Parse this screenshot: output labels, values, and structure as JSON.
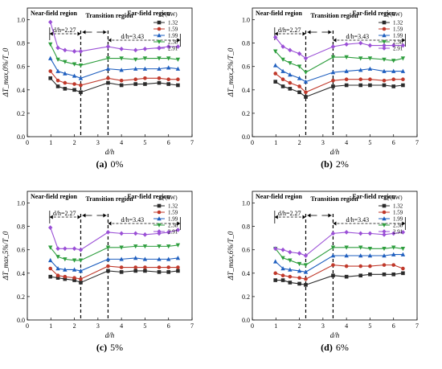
{
  "figure": {
    "series_colors": [
      "#2b2b2b",
      "#c0392b",
      "#1f5fbf",
      "#2e9e3e",
      "#9a4fd6"
    ],
    "series_markers": [
      "square",
      "circle",
      "triangle",
      "inverted-triangle",
      "diamond"
    ]
  },
  "chart_data": [
    {
      "type": "line",
      "caption_letter": "(a)",
      "caption_value": "0%",
      "ylabel": "ΔT_max,0%/T_0",
      "xlabel": "d/h",
      "xlim": [
        0,
        7
      ],
      "ylim": [
        0,
        1.1
      ],
      "xticks": [
        "0",
        "1",
        "2",
        "3",
        "4",
        "5",
        "6",
        "7"
      ],
      "yticks": [
        "0.0",
        "0.2",
        "0.4",
        "0.6",
        "0.8",
        "1.0"
      ],
      "grid": false,
      "legend": {
        "title": "Q (kW)",
        "placement": "top-right",
        "entries": [
          "1.32",
          "1.59",
          "1.99",
          "2.38",
          "2.91"
        ]
      },
      "dashed_lines_x": [
        2.27,
        3.43
      ],
      "annotations": {
        "near": "Near-field region",
        "transition": "Transition region",
        "far": "Far-field region",
        "d1": "d/h=2.27",
        "d2": "d/h=3.43"
      },
      "x": [
        0.98,
        1.3,
        1.6,
        2.0,
        2.27,
        3.43,
        4.0,
        4.6,
        5.0,
        5.6,
        6.0,
        6.4
      ],
      "series": [
        {
          "name": "1.32",
          "values": [
            0.5,
            0.43,
            0.41,
            0.4,
            0.38,
            0.46,
            0.44,
            0.45,
            0.45,
            0.46,
            0.45,
            0.44
          ]
        },
        {
          "name": "1.59",
          "values": [
            0.56,
            0.48,
            0.46,
            0.45,
            0.44,
            0.5,
            0.48,
            0.49,
            0.5,
            0.5,
            0.49,
            0.49
          ]
        },
        {
          "name": "1.99",
          "values": [
            0.67,
            0.56,
            0.54,
            0.52,
            0.5,
            0.58,
            0.57,
            0.58,
            0.58,
            0.58,
            0.59,
            0.58
          ]
        },
        {
          "name": "2.38",
          "values": [
            0.79,
            0.66,
            0.64,
            0.62,
            0.61,
            0.67,
            0.67,
            0.66,
            0.67,
            0.67,
            0.67,
            0.66
          ]
        },
        {
          "name": "2.91",
          "values": [
            0.98,
            0.76,
            0.74,
            0.73,
            0.73,
            0.77,
            0.75,
            0.74,
            0.75,
            0.76,
            0.77,
            0.77
          ]
        }
      ]
    },
    {
      "type": "line",
      "caption_letter": "(b)",
      "caption_value": "2%",
      "ylabel": "ΔT_max,2%/T_0",
      "xlabel": "d/h",
      "xlim": [
        0,
        7
      ],
      "ylim": [
        0,
        1.1
      ],
      "xticks": [
        "0",
        "1",
        "2",
        "3",
        "4",
        "5",
        "6",
        "7"
      ],
      "yticks": [
        "0.0",
        "0.2",
        "0.4",
        "0.6",
        "0.8",
        "1.0"
      ],
      "grid": false,
      "legend": {
        "title": "Q (kW)",
        "placement": "top-right",
        "entries": [
          "1.32",
          "1.59",
          "1.99",
          "2.38",
          "2.91"
        ]
      },
      "dashed_lines_x": [
        2.27,
        3.43
      ],
      "annotations": {
        "near": "Near-field region",
        "transition": "Transition region",
        "far": "Far-field region",
        "d1": "d/h=2.27",
        "d2": "d/h=3.43"
      },
      "x": [
        0.98,
        1.3,
        1.6,
        2.0,
        2.27,
        3.43,
        4.0,
        4.6,
        5.0,
        5.6,
        6.0,
        6.4
      ],
      "series": [
        {
          "name": "1.32",
          "values": [
            0.47,
            0.43,
            0.41,
            0.38,
            0.34,
            0.43,
            0.44,
            0.44,
            0.44,
            0.44,
            0.43,
            0.44
          ]
        },
        {
          "name": "1.59",
          "values": [
            0.54,
            0.49,
            0.46,
            0.43,
            0.38,
            0.48,
            0.49,
            0.49,
            0.49,
            0.48,
            0.49,
            0.49
          ]
        },
        {
          "name": "1.99",
          "values": [
            0.61,
            0.56,
            0.53,
            0.5,
            0.47,
            0.55,
            0.56,
            0.57,
            0.58,
            0.56,
            0.56,
            0.56
          ]
        },
        {
          "name": "2.38",
          "values": [
            0.73,
            0.66,
            0.63,
            0.6,
            0.55,
            0.68,
            0.68,
            0.67,
            0.67,
            0.66,
            0.65,
            0.67
          ]
        },
        {
          "name": "2.91",
          "values": [
            0.85,
            0.77,
            0.74,
            0.71,
            0.67,
            0.77,
            0.79,
            0.8,
            0.78,
            0.78,
            0.78,
            0.78
          ]
        }
      ]
    },
    {
      "type": "line",
      "caption_letter": "(c)",
      "caption_value": "5%",
      "ylabel": "ΔT_max,5%/T_0",
      "xlabel": "d/h",
      "xlim": [
        0,
        7
      ],
      "ylim": [
        0,
        1.1
      ],
      "xticks": [
        "0",
        "1",
        "2",
        "3",
        "4",
        "5",
        "6",
        "7"
      ],
      "yticks": [
        "0.0",
        "0.2",
        "0.4",
        "0.6",
        "0.8",
        "1.0"
      ],
      "grid": false,
      "legend": {
        "title": "Q (kW)",
        "placement": "top-right",
        "entries": [
          "1.32",
          "1.59",
          "1.99",
          "2.38",
          "2.91"
        ]
      },
      "dashed_lines_x": [
        2.27,
        3.43
      ],
      "annotations": {
        "near": "Near-field region",
        "transition": "Transition region",
        "far": "Far-field region",
        "d1": "d/h=2.27",
        "d2": "d/h=3.43"
      },
      "x": [
        0.98,
        1.3,
        1.6,
        2.0,
        2.27,
        3.43,
        4.0,
        4.6,
        5.0,
        5.6,
        6.0,
        6.4
      ],
      "series": [
        {
          "name": "1.32",
          "values": [
            0.37,
            0.36,
            0.35,
            0.34,
            0.32,
            0.42,
            0.41,
            0.42,
            0.42,
            0.41,
            0.41,
            0.42
          ]
        },
        {
          "name": "1.59",
          "values": [
            0.44,
            0.38,
            0.37,
            0.36,
            0.35,
            0.46,
            0.45,
            0.45,
            0.45,
            0.45,
            0.45,
            0.45
          ]
        },
        {
          "name": "1.99",
          "values": [
            0.51,
            0.44,
            0.43,
            0.43,
            0.42,
            0.52,
            0.52,
            0.53,
            0.52,
            0.52,
            0.52,
            0.53
          ]
        },
        {
          "name": "2.38",
          "values": [
            0.62,
            0.54,
            0.52,
            0.51,
            0.51,
            0.62,
            0.62,
            0.63,
            0.63,
            0.63,
            0.63,
            0.64
          ]
        },
        {
          "name": "2.91",
          "values": [
            0.79,
            0.61,
            0.61,
            0.61,
            0.6,
            0.75,
            0.74,
            0.74,
            0.73,
            0.74,
            0.75,
            0.77
          ]
        }
      ]
    },
    {
      "type": "line",
      "caption_letter": "(d)",
      "caption_value": "6%",
      "ylabel": "ΔT_max,6%/T_0",
      "xlabel": "d/h",
      "xlim": [
        0,
        7
      ],
      "ylim": [
        0,
        1.1
      ],
      "xticks": [
        "0",
        "1",
        "2",
        "3",
        "4",
        "5",
        "6",
        "7"
      ],
      "yticks": [
        "0.0",
        "0.2",
        "0.4",
        "0.6",
        "0.8",
        "1.0"
      ],
      "grid": false,
      "legend": {
        "title": "Q (kW)",
        "placement": "top-right",
        "entries": [
          "1.32",
          "1.59",
          "1.99",
          "2.38",
          "2.91"
        ]
      },
      "dashed_lines_x": [
        2.27,
        3.43
      ],
      "annotations": {
        "near": "Near-field region",
        "transition": "Transition region",
        "far": "Far-field region",
        "d1": "d/h=2.27",
        "d2": "d/h=3.43"
      },
      "x": [
        0.98,
        1.3,
        1.6,
        2.0,
        2.27,
        3.43,
        4.0,
        4.6,
        5.0,
        5.6,
        6.0,
        6.4
      ],
      "series": [
        {
          "name": "1.32",
          "values": [
            0.34,
            0.34,
            0.32,
            0.31,
            0.3,
            0.38,
            0.37,
            0.38,
            0.39,
            0.39,
            0.39,
            0.4
          ]
        },
        {
          "name": "1.59",
          "values": [
            0.4,
            0.38,
            0.37,
            0.36,
            0.35,
            0.47,
            0.46,
            0.46,
            0.46,
            0.47,
            0.47,
            0.44
          ]
        },
        {
          "name": "1.99",
          "values": [
            0.5,
            0.44,
            0.43,
            0.42,
            0.41,
            0.55,
            0.55,
            0.55,
            0.55,
            0.55,
            0.56,
            0.56
          ]
        },
        {
          "name": "2.38",
          "values": [
            0.61,
            0.53,
            0.51,
            0.48,
            0.47,
            0.62,
            0.62,
            0.62,
            0.61,
            0.61,
            0.62,
            0.61
          ]
        },
        {
          "name": "2.91",
          "values": [
            0.61,
            0.6,
            0.58,
            0.57,
            0.55,
            0.74,
            0.75,
            0.74,
            0.74,
            0.73,
            0.74,
            0.75
          ]
        }
      ]
    }
  ]
}
